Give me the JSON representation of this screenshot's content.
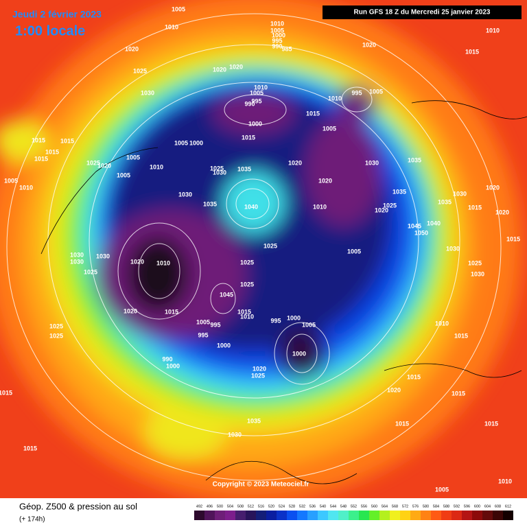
{
  "header": {
    "date": "Jeudi 2 février 2023",
    "time": "1:00 locale",
    "run": "Run GFS 18 Z du Mercredi 25 janvier 2023",
    "copyright": "Copyright © 2023 Meteociel.fr"
  },
  "footer": {
    "title": "Géop. Z500 & pression au sol",
    "lead": "(+ 174h)"
  },
  "isobars": [
    1005,
    1010,
    1020,
    1025,
    1030,
    1010,
    1005,
    1000,
    995,
    990,
    985,
    1020,
    1010,
    1015,
    1020,
    1020,
    1010,
    1005,
    995,
    990,
    1000,
    1015,
    1015,
    1010,
    995,
    1005,
    1005,
    1030,
    1035,
    1020,
    1010,
    1020,
    1035,
    1040,
    1035,
    1025,
    1030,
    1005,
    1000,
    1005,
    1010,
    1025,
    1020,
    1015,
    1015,
    1015,
    1015,
    1005,
    1010,
    1005,
    1030,
    1030,
    1030,
    1030,
    1025,
    1020,
    1010,
    1020,
    1015,
    1005,
    995,
    995,
    1000,
    1045,
    1025,
    1025,
    1025,
    1015,
    1010,
    995,
    1000,
    1005,
    1000,
    1005,
    1035,
    1025,
    1020,
    1035,
    1030,
    1020,
    1015,
    1040,
    1045,
    1050,
    1030,
    1015,
    1025,
    1030,
    1010,
    1015,
    1015,
    1020,
    1015,
    1015,
    1015,
    1020,
    1025,
    1035,
    1030,
    1015,
    1015,
    1025,
    1025,
    990,
    1000,
    1005,
    1010,
    1020
  ],
  "legend": {
    "ticks": [
      492,
      496,
      500,
      504,
      508,
      512,
      516,
      520,
      524,
      528,
      532,
      536,
      540,
      544,
      548,
      552,
      556,
      560,
      564,
      568,
      572,
      576,
      580,
      584,
      588,
      592,
      596,
      600,
      604,
      608,
      612
    ],
    "colors": [
      "#2d0a2d",
      "#50145a",
      "#6e1e78",
      "#7d1e8c",
      "#461e6e",
      "#28145a",
      "#141e78",
      "#0a1ea0",
      "#0a32c8",
      "#0a50f0",
      "#1478ff",
      "#28a0ff",
      "#3cc8ff",
      "#50e6f0",
      "#50f0c8",
      "#3cf08c",
      "#28e650",
      "#64f028",
      "#b4f01e",
      "#f0f01e",
      "#ffd214",
      "#ffaa14",
      "#ff8214",
      "#ff5a14",
      "#f03c14",
      "#dc2814",
      "#b41414",
      "#8c0a0a",
      "#640a0a",
      "#3c0505",
      "#140000"
    ]
  }
}
